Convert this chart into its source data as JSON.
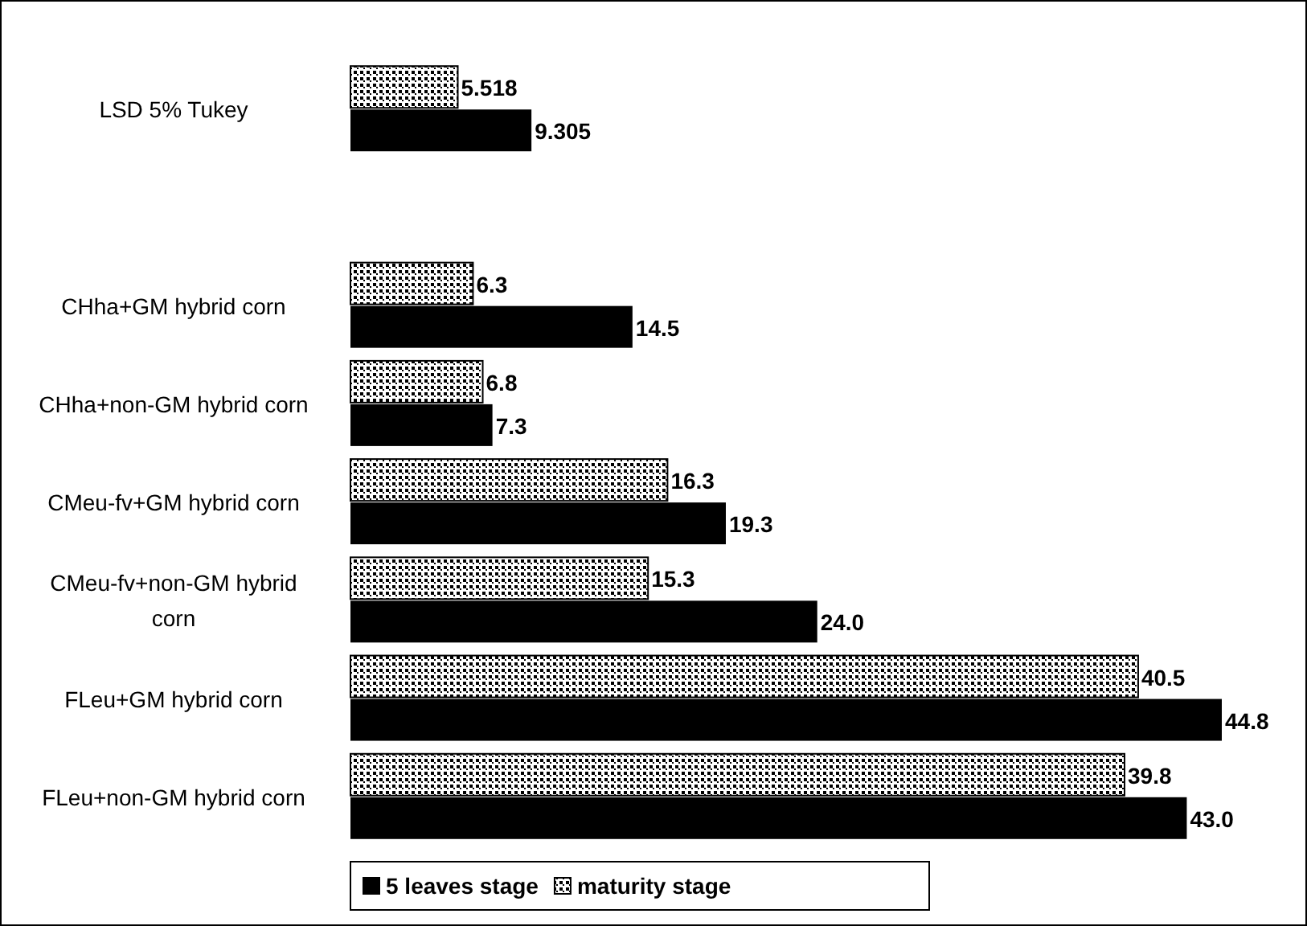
{
  "chart_data": {
    "type": "bar",
    "orientation": "horizontal",
    "categories": [
      "LSD 5% Tukey",
      null,
      "CHha+GM hybrid corn",
      "CHha+non-GM hybrid corn",
      "CMeu-fv+GM hybrid corn",
      "CMeu-fv+non-GM hybrid corn",
      "FLeu+GM hybrid corn",
      "FLeu+non-GM hybrid corn"
    ],
    "series": [
      {
        "name": "5 leaves stage",
        "color": "#000000",
        "values": [
          9.305,
          null,
          14.5,
          7.3,
          19.3,
          24.0,
          44.8,
          43.0
        ],
        "value_labels": [
          "9.305",
          null,
          "14.5",
          "7.3",
          "19.3",
          "24.0",
          "44.8",
          "43.0"
        ]
      },
      {
        "name": "maturity stage",
        "color": "#000000",
        "values": [
          5.518,
          null,
          6.3,
          6.8,
          16.3,
          15.3,
          40.5,
          39.8
        ],
        "value_labels": [
          "5.518",
          null,
          "6.3",
          "6.8",
          "16.3",
          "15.3",
          "40.5",
          "39.8"
        ]
      }
    ],
    "legend": "bottom"
  }
}
